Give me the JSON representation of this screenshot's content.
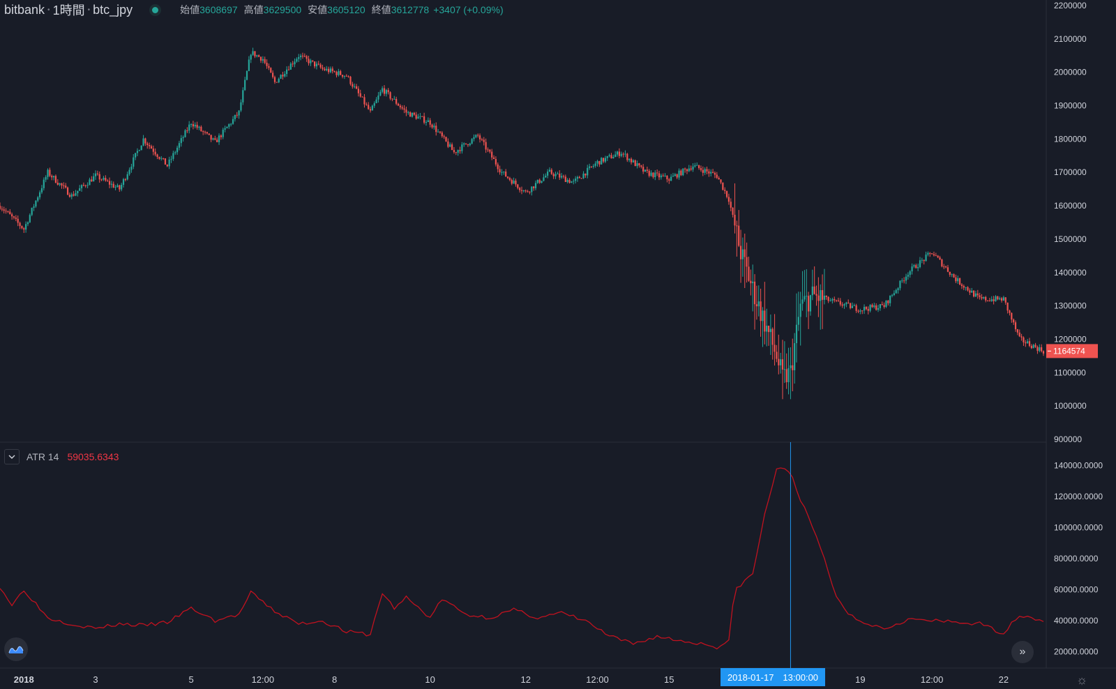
{
  "legend": {
    "exchange": "bitbank",
    "interval": "1時間",
    "pair": "btc_jpy",
    "open_label": "始値",
    "open": "3608697",
    "high_label": "高値",
    "high": "3629500",
    "low_label": "安値",
    "low": "3605120",
    "close_label": "終値",
    "close": "3612778",
    "change": "+3407 (+0.09%)"
  },
  "indicator": {
    "name": "ATR 14",
    "value": "59035.6343"
  },
  "last_price_label": "1164574",
  "crosshair_label": "2018-01-17　13:00:00",
  "colors": {
    "up": "#26a69a",
    "down": "#ef5350",
    "atr": "#c1121f",
    "crosshair": "#2196f3",
    "background": "#181c27",
    "price_label": "#ef5350"
  },
  "icons": {
    "logo": "tradingview-logo-icon",
    "scroll": "double-chevron-right-icon",
    "settings": "settings-sun-icon",
    "collapse": "chevron-down-icon"
  },
  "chart_data": [
    {
      "type": "candlestick",
      "x_ticks": [
        "2018",
        "3",
        "5",
        "12:00",
        "8",
        "10",
        "12",
        "12:00",
        "15",
        "19",
        "12:00",
        "22"
      ],
      "y_ticks": [
        "2200000",
        "2100000",
        "2000000",
        "1900000",
        "1800000",
        "1700000",
        "1600000",
        "1500000",
        "1400000",
        "1300000",
        "1200000",
        "1100000",
        "1000000",
        "900000"
      ],
      "ylim": [
        900000,
        2200000
      ],
      "last_price": 1164574,
      "close_trend": [
        {
          "x": "2018-01-01 00:00",
          "y": 1600000
        },
        {
          "x": "2018-01-01 12:00",
          "y": 1530000
        },
        {
          "x": "2018-01-02 00:00",
          "y": 1700000
        },
        {
          "x": "2018-01-02 12:00",
          "y": 1630000
        },
        {
          "x": "2018-01-03 00:00",
          "y": 1690000
        },
        {
          "x": "2018-01-03 12:00",
          "y": 1650000
        },
        {
          "x": "2018-01-04 00:00",
          "y": 1800000
        },
        {
          "x": "2018-01-04 12:00",
          "y": 1720000
        },
        {
          "x": "2018-01-05 00:00",
          "y": 1850000
        },
        {
          "x": "2018-01-05 12:00",
          "y": 1790000
        },
        {
          "x": "2018-01-06 00:00",
          "y": 1880000
        },
        {
          "x": "2018-01-06 06:00",
          "y": 2060000
        },
        {
          "x": "2018-01-06 12:00",
          "y": 2040000
        },
        {
          "x": "2018-01-06 18:00",
          "y": 1970000
        },
        {
          "x": "2018-01-07 06:00",
          "y": 2050000
        },
        {
          "x": "2018-01-07 18:00",
          "y": 2010000
        },
        {
          "x": "2018-01-08 06:00",
          "y": 1990000
        },
        {
          "x": "2018-01-08 18:00",
          "y": 1880000
        },
        {
          "x": "2018-01-09 00:00",
          "y": 1950000
        },
        {
          "x": "2018-01-09 12:00",
          "y": 1880000
        },
        {
          "x": "2018-01-10 00:00",
          "y": 1850000
        },
        {
          "x": "2018-01-10 12:00",
          "y": 1760000
        },
        {
          "x": "2018-01-11 00:00",
          "y": 1810000
        },
        {
          "x": "2018-01-11 12:00",
          "y": 1700000
        },
        {
          "x": "2018-01-12 00:00",
          "y": 1640000
        },
        {
          "x": "2018-01-12 12:00",
          "y": 1700000
        },
        {
          "x": "2018-01-13 00:00",
          "y": 1670000
        },
        {
          "x": "2018-01-13 12:00",
          "y": 1730000
        },
        {
          "x": "2018-01-14 00:00",
          "y": 1760000
        },
        {
          "x": "2018-01-14 12:00",
          "y": 1700000
        },
        {
          "x": "2018-01-15 00:00",
          "y": 1680000
        },
        {
          "x": "2018-01-15 12:00",
          "y": 1720000
        },
        {
          "x": "2018-01-16 00:00",
          "y": 1690000
        },
        {
          "x": "2018-01-16 06:00",
          "y": 1620000
        },
        {
          "x": "2018-01-16 12:00",
          "y": 1460000
        },
        {
          "x": "2018-01-16 18:00",
          "y": 1350000
        },
        {
          "x": "2018-01-17 00:00",
          "y": 1250000
        },
        {
          "x": "2018-01-17 06:00",
          "y": 1150000
        },
        {
          "x": "2018-01-17 09:00",
          "y": 1080000
        },
        {
          "x": "2018-01-17 13:00",
          "y": 1100000
        },
        {
          "x": "2018-01-17 18:00",
          "y": 1300000
        },
        {
          "x": "2018-01-18 00:00",
          "y": 1330000
        },
        {
          "x": "2018-01-18 12:00",
          "y": 1310000
        },
        {
          "x": "2018-01-19 00:00",
          "y": 1290000
        },
        {
          "x": "2018-01-19 12:00",
          "y": 1300000
        },
        {
          "x": "2018-01-20 00:00",
          "y": 1400000
        },
        {
          "x": "2018-01-20 12:00",
          "y": 1460000
        },
        {
          "x": "2018-01-21 00:00",
          "y": 1380000
        },
        {
          "x": "2018-01-21 12:00",
          "y": 1320000
        },
        {
          "x": "2018-01-22 00:00",
          "y": 1320000
        },
        {
          "x": "2018-01-22 08:00",
          "y": 1200000
        },
        {
          "x": "2018-01-22 20:00",
          "y": 1164574
        }
      ]
    },
    {
      "type": "line",
      "series": [
        {
          "name": "ATR 14",
          "color": "#c1121f"
        }
      ],
      "y_ticks": [
        "140000.0000",
        "120000.0000",
        "100000.0000",
        "80000.0000",
        "60000.0000",
        "40000.0000",
        "20000.0000"
      ],
      "ylim": [
        10000,
        150000
      ],
      "points": [
        {
          "x": "2018-01-01 00:00",
          "y": 62000
        },
        {
          "x": "2018-01-01 06:00",
          "y": 50000
        },
        {
          "x": "2018-01-01 12:00",
          "y": 60000
        },
        {
          "x": "2018-01-02 00:00",
          "y": 42000
        },
        {
          "x": "2018-01-02 12:00",
          "y": 38000
        },
        {
          "x": "2018-01-03 00:00",
          "y": 35000
        },
        {
          "x": "2018-01-03 12:00",
          "y": 38000
        },
        {
          "x": "2018-01-04 00:00",
          "y": 37000
        },
        {
          "x": "2018-01-04 12:00",
          "y": 39000
        },
        {
          "x": "2018-01-05 00:00",
          "y": 48000
        },
        {
          "x": "2018-01-05 12:00",
          "y": 40000
        },
        {
          "x": "2018-01-06 00:00",
          "y": 44000
        },
        {
          "x": "2018-01-06 06:00",
          "y": 58000
        },
        {
          "x": "2018-01-06 18:00",
          "y": 46000
        },
        {
          "x": "2018-01-07 06:00",
          "y": 38000
        },
        {
          "x": "2018-01-07 18:00",
          "y": 40000
        },
        {
          "x": "2018-01-08 06:00",
          "y": 33000
        },
        {
          "x": "2018-01-08 18:00",
          "y": 31000
        },
        {
          "x": "2018-01-09 00:00",
          "y": 58000
        },
        {
          "x": "2018-01-09 06:00",
          "y": 48000
        },
        {
          "x": "2018-01-09 12:00",
          "y": 55000
        },
        {
          "x": "2018-01-10 00:00",
          "y": 42000
        },
        {
          "x": "2018-01-10 06:00",
          "y": 54000
        },
        {
          "x": "2018-01-10 18:00",
          "y": 44000
        },
        {
          "x": "2018-01-11 06:00",
          "y": 42000
        },
        {
          "x": "2018-01-11 18:00",
          "y": 47000
        },
        {
          "x": "2018-01-12 06:00",
          "y": 42000
        },
        {
          "x": "2018-01-12 18:00",
          "y": 45000
        },
        {
          "x": "2018-01-13 06:00",
          "y": 40000
        },
        {
          "x": "2018-01-13 18:00",
          "y": 30000
        },
        {
          "x": "2018-01-14 06:00",
          "y": 25000
        },
        {
          "x": "2018-01-14 18:00",
          "y": 30000
        },
        {
          "x": "2018-01-15 06:00",
          "y": 27000
        },
        {
          "x": "2018-01-15 18:00",
          "y": 25000
        },
        {
          "x": "2018-01-16 00:00",
          "y": 23000
        },
        {
          "x": "2018-01-16 06:00",
          "y": 27000
        },
        {
          "x": "2018-01-16 09:00",
          "y": 60000
        },
        {
          "x": "2018-01-16 18:00",
          "y": 70000
        },
        {
          "x": "2018-01-17 00:00",
          "y": 108000
        },
        {
          "x": "2018-01-17 06:00",
          "y": 138000
        },
        {
          "x": "2018-01-17 13:00",
          "y": 136000
        },
        {
          "x": "2018-01-17 18:00",
          "y": 118000
        },
        {
          "x": "2018-01-18 00:00",
          "y": 100000
        },
        {
          "x": "2018-01-18 06:00",
          "y": 80000
        },
        {
          "x": "2018-01-18 12:00",
          "y": 55000
        },
        {
          "x": "2018-01-18 18:00",
          "y": 45000
        },
        {
          "x": "2018-01-19 00:00",
          "y": 40000
        },
        {
          "x": "2018-01-19 12:00",
          "y": 35000
        },
        {
          "x": "2018-01-20 00:00",
          "y": 41000
        },
        {
          "x": "2018-01-20 12:00",
          "y": 40000
        },
        {
          "x": "2018-01-21 00:00",
          "y": 39000
        },
        {
          "x": "2018-01-21 12:00",
          "y": 38000
        },
        {
          "x": "2018-01-22 00:00",
          "y": 32000
        },
        {
          "x": "2018-01-22 08:00",
          "y": 44000
        },
        {
          "x": "2018-01-22 20:00",
          "y": 40000
        }
      ]
    }
  ]
}
